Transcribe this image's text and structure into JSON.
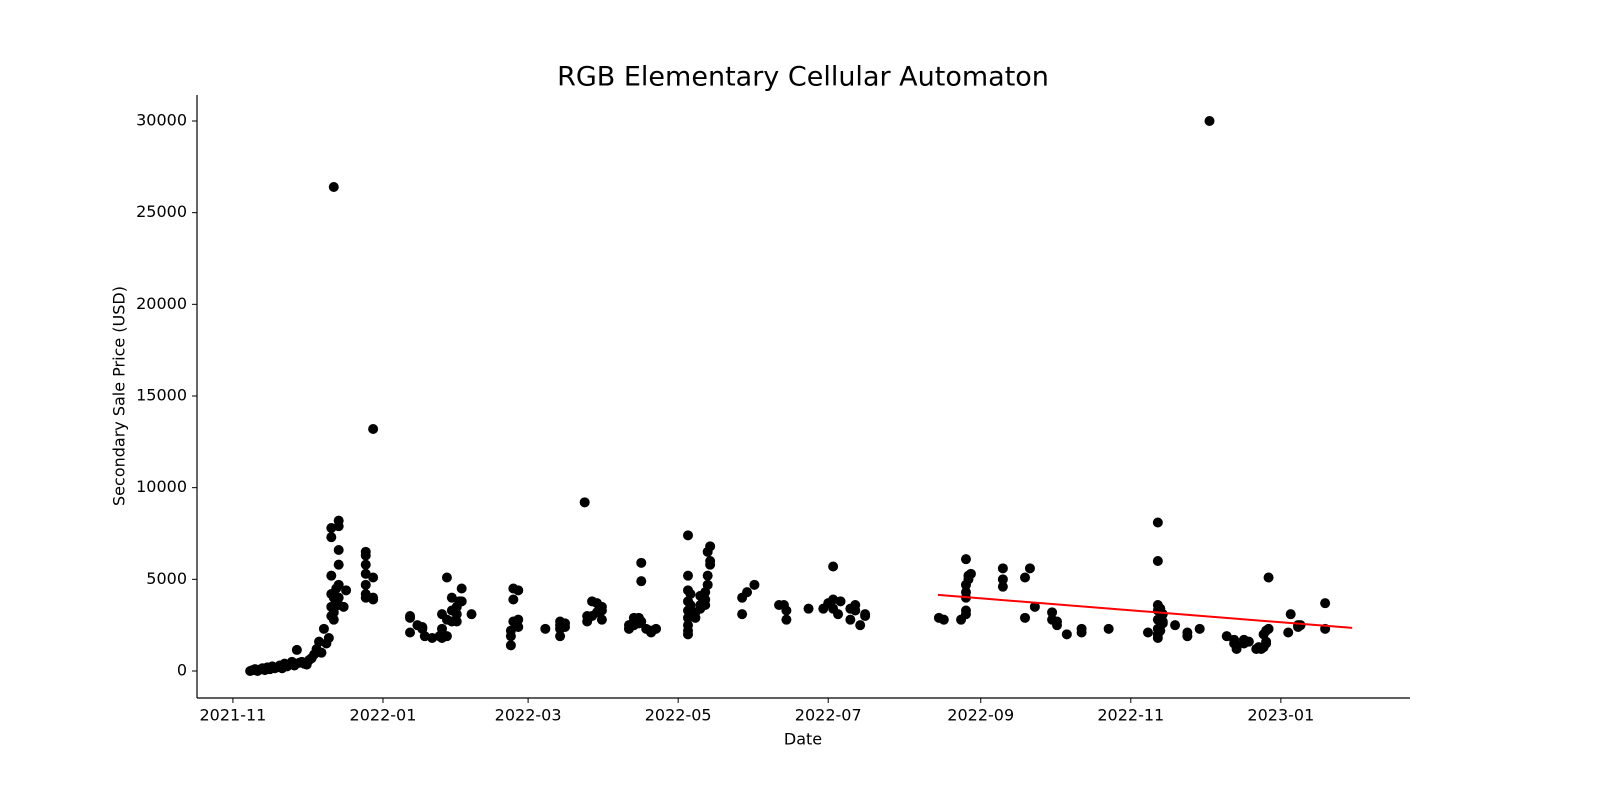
{
  "chart_data": {
    "type": "scatter",
    "title": "RGB Elementary Cellular Automaton",
    "x_label": "Date",
    "y_label": "Secondary Sale Price (USD)",
    "xlim": [
      18917.4,
      19410.5
    ],
    "xticks": [
      {
        "value": 18932,
        "label": "2021-11"
      },
      {
        "value": 18993,
        "label": "2022-01"
      },
      {
        "value": 19052,
        "label": "2022-03"
      },
      {
        "value": 19113,
        "label": "2022-05"
      },
      {
        "value": 19174,
        "label": "2022-07"
      },
      {
        "value": 19236,
        "label": "2022-09"
      },
      {
        "value": 19297,
        "label": "2022-11"
      },
      {
        "value": 19358,
        "label": "2023-01"
      }
    ],
    "ylim": [
      -1473,
      31418
    ],
    "yticks": [
      0,
      5000,
      10000,
      15000,
      20000,
      25000,
      30000
    ],
    "grid": false,
    "series": [
      {
        "style": "points",
        "color": "#000000",
        "x": [
          18939,
          18940,
          18941,
          18942,
          18943,
          18944,
          18945,
          18946,
          18947,
          18948,
          18949,
          18950,
          18951,
          18952,
          18953,
          18954,
          18955,
          18956,
          18957,
          18958,
          18959,
          18960,
          18961,
          18962,
          18963,
          18964,
          18965,
          18966,
          18967,
          18968,
          18969,
          18970,
          18971,
          18972,
          18972,
          18972,
          18972,
          18972,
          18972,
          18973,
          18973,
          18973,
          18973,
          18974,
          18974,
          18975,
          18975,
          18975,
          18975,
          18975,
          18975,
          18975,
          18977,
          18978,
          18986,
          18986,
          18986,
          18986,
          18986,
          18986,
          18986,
          18989,
          18989,
          18989,
          18989,
          19004,
          19004,
          19004,
          19007,
          19009,
          19009,
          19010,
          19013,
          19016,
          19017,
          19017,
          19017,
          19019,
          19019,
          19019,
          19021,
          19021,
          19021,
          19023,
          19023,
          19023,
          19024,
          19025,
          19025,
          19029,
          19045,
          19045,
          19045,
          19046,
          19046,
          19046,
          19048,
          19048,
          19048,
          19059,
          19065,
          19065,
          19065,
          19065,
          19067,
          19067,
          19075,
          19076,
          19076,
          19078,
          19078,
          19080,
          19080,
          19082,
          19082,
          19082,
          19093,
          19093,
          19095,
          19095,
          19095,
          19097,
          19097,
          19098,
          19098,
          19098,
          19100,
          19102,
          19102,
          19104,
          19117,
          19117,
          19117,
          19117,
          19117,
          19117,
          19117,
          19117,
          19117,
          19118,
          19118,
          19118,
          19120,
          19120,
          19122,
          19122,
          19122,
          19124,
          19124,
          19124,
          19125,
          19125,
          19125,
          19126,
          19126,
          19126,
          19139,
          19139,
          19141,
          19144,
          19154,
          19156,
          19157,
          19157,
          19166,
          19172,
          19174,
          19176,
          19176,
          19176,
          19178,
          19179,
          19183,
          19183,
          19185,
          19185,
          19187,
          19189,
          19189,
          19219,
          19221,
          19228,
          19230,
          19230,
          19230,
          19230,
          19230,
          19230,
          19231,
          19231,
          19232,
          19245,
          19245,
          19245,
          19254,
          19254,
          19256,
          19258,
          19265,
          19265,
          19267,
          19267,
          19271,
          19277,
          19277,
          19288,
          19304,
          19308,
          19308,
          19308,
          19308,
          19308,
          19308,
          19308,
          19308,
          19309,
          19309,
          19309,
          19310,
          19310,
          19310,
          19315,
          19320,
          19320,
          19325,
          19329,
          19336,
          19339,
          19339,
          19340,
          19340,
          19343,
          19343,
          19345,
          19348,
          19349,
          19350,
          19351,
          19351,
          19352,
          19352,
          19352,
          19353,
          19353,
          19361,
          19362,
          19365,
          19365,
          19366,
          19376,
          19376
        ],
        "values": [
          0,
          50,
          100,
          0,
          80,
          150,
          50,
          200,
          100,
          250,
          150,
          200,
          300,
          150,
          400,
          250,
          350,
          500,
          300,
          1150,
          450,
          500,
          400,
          350,
          600,
          700,
          900,
          1200,
          1600,
          1000,
          2300,
          1500,
          1800,
          3000,
          7800,
          7300,
          5200,
          4200,
          3500,
          26400,
          2800,
          4000,
          3200,
          3800,
          4500,
          8200,
          7900,
          6600,
          5800,
          4700,
          4000,
          3600,
          3500,
          4400,
          6500,
          6300,
          5800,
          5300,
          4700,
          4200,
          4000,
          13200,
          5100,
          3900,
          4000,
          3000,
          2100,
          2900,
          2500,
          2300,
          2400,
          1900,
          1800,
          1900,
          2300,
          3100,
          1800,
          2800,
          5100,
          1900,
          2700,
          3300,
          4000,
          3500,
          3100,
          2700,
          3800,
          4500,
          3800,
          3100,
          1900,
          1400,
          2200,
          4500,
          3900,
          2700,
          4400,
          2400,
          2800,
          2300,
          1900,
          2700,
          2300,
          2500,
          2600,
          2400,
          9200,
          2700,
          3000,
          3800,
          3000,
          3700,
          3200,
          3500,
          2800,
          3300,
          2300,
          2500,
          2900,
          2700,
          2500,
          2900,
          2600,
          5900,
          4900,
          2700,
          2300,
          2100,
          2200,
          2300,
          7400,
          5200,
          4400,
          3800,
          3300,
          2900,
          2500,
          2200,
          2000,
          3600,
          4200,
          3100,
          2900,
          3200,
          4100,
          3600,
          3400,
          3900,
          3600,
          4300,
          5200,
          6500,
          4700,
          5800,
          6800,
          6000,
          4000,
          3100,
          4300,
          4700,
          3600,
          3600,
          3300,
          2800,
          3400,
          3400,
          3700,
          5700,
          3900,
          3400,
          3100,
          3800,
          2800,
          3400,
          3300,
          3600,
          2500,
          3100,
          3000,
          2900,
          2800,
          2800,
          3300,
          3100,
          4000,
          4300,
          6100,
          4700,
          5000,
          5200,
          5300,
          5600,
          5000,
          4600,
          5100,
          2900,
          5600,
          3500,
          3200,
          2800,
          2500,
          2700,
          2000,
          2300,
          2100,
          2300,
          2100,
          8100,
          6000,
          3600,
          3300,
          2800,
          2300,
          2000,
          1800,
          3400,
          2900,
          2200,
          3100,
          2700,
          2600,
          2500,
          2100,
          1900,
          2300,
          30000,
          1900,
          1700,
          1500,
          1400,
          1200,
          1700,
          1500,
          1600,
          1200,
          1300,
          1200,
          1300,
          2000,
          1600,
          1500,
          2200,
          5100,
          2300,
          2100,
          3100,
          2400,
          2500,
          2500,
          3700,
          2300
        ]
      },
      {
        "style": "line",
        "color": "#ff0000",
        "x": [
          19218.6,
          19387
        ],
        "values": [
          4150,
          2350
        ]
      }
    ]
  }
}
